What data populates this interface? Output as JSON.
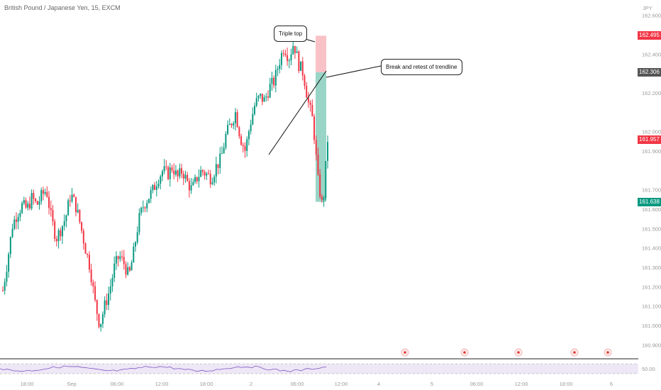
{
  "header": {
    "title": "British Pound / Japanese Yen, 15, EXCM"
  },
  "axis": {
    "currency": "JPY",
    "ticks": [
      "162.600",
      "162.400",
      "162.200",
      "162.000",
      "161.900",
      "161.700",
      "161.600",
      "161.500",
      "161.400",
      "161.300",
      "161.200",
      "161.100",
      "161.000",
      "160.900"
    ],
    "x_labels": [
      "18:00",
      "Sep",
      "06:00",
      "12:00",
      "18:00",
      "2",
      "06:00",
      "12:00",
      "4",
      "5",
      "06:00",
      "12:00",
      "18:00",
      "6"
    ],
    "rsi_label": "50.00"
  },
  "price_labels": {
    "high": {
      "text": "162.495",
      "color": "#f23645"
    },
    "retest": {
      "text": "162.306",
      "color": "#555555"
    },
    "last": {
      "text": "161.957",
      "color": "#f23645"
    },
    "target": {
      "text": "161.638",
      "color": "#089981"
    }
  },
  "annotations": {
    "triple_top": "Triple top",
    "break_retest": "Break and retest of trendline"
  },
  "colors": {
    "up": "#089981",
    "down": "#f23645",
    "rsi": "#7e57c2"
  },
  "chart_data": {
    "type": "candlestick",
    "symbol": "British Pound / Japanese Yen",
    "interval": "15",
    "exchange": "EXCM",
    "ylim": [
      160.85,
      162.65
    ],
    "close_path": [
      161.18,
      161.34,
      161.52,
      161.58,
      161.62,
      161.6,
      161.66,
      161.62,
      161.67,
      161.7,
      161.55,
      161.45,
      161.5,
      161.56,
      161.68,
      161.62,
      161.52,
      161.4,
      161.3,
      161.12,
      161.0,
      161.1,
      161.18,
      161.3,
      161.36,
      161.32,
      161.25,
      161.38,
      161.54,
      161.62,
      161.66,
      161.7,
      161.76,
      161.8,
      161.78,
      161.82,
      161.76,
      161.8,
      161.74,
      161.7,
      161.76,
      161.8,
      161.78,
      161.76,
      161.82,
      161.86,
      161.98,
      162.04,
      162.1,
      161.97,
      161.9,
      162.04,
      162.14,
      162.18,
      162.16,
      162.23,
      162.26,
      162.36,
      162.44,
      162.38,
      162.46,
      162.35,
      162.3,
      162.15,
      162.05,
      161.75,
      161.6,
      161.96
    ]
  },
  "events": [
    "event-flag",
    "us-flag-event",
    "gb-flag-event",
    "us-flag-event",
    "event-flag"
  ]
}
